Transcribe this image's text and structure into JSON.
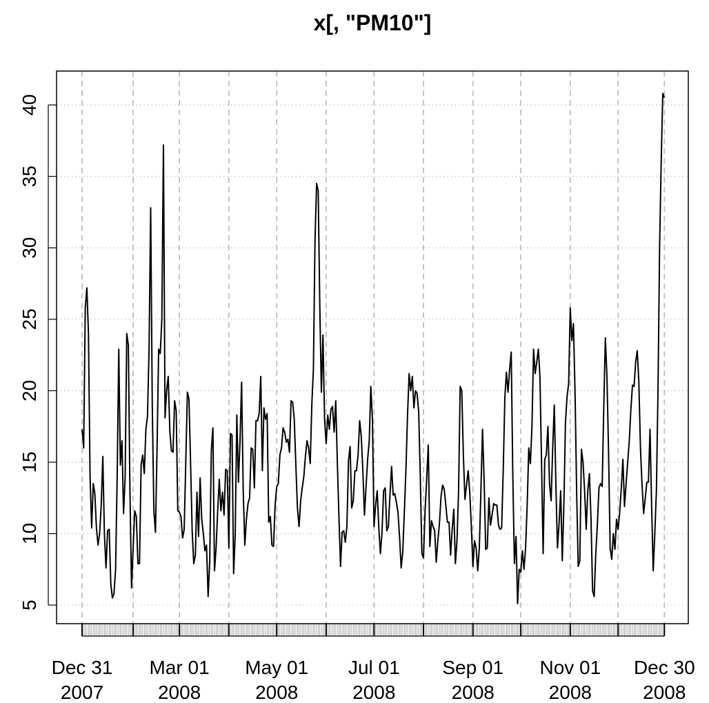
{
  "chart_data": {
    "type": "line",
    "title": "x[, \"PM10\"]",
    "color": "#000000",
    "grid": true,
    "xlim": [
      "2007-12-15",
      "2009-01-14"
    ],
    "ylim": [
      3.7,
      42.37
    ],
    "yticks": [
      5,
      10,
      15,
      20,
      25,
      30,
      35,
      40
    ],
    "xticks": [
      {
        "value": "2007-12-31",
        "label": "Dec 31\n2007"
      },
      {
        "value": "2008-02-01",
        "label": null
      },
      {
        "value": "2008-03-01",
        "label": "Mar 01\n2008"
      },
      {
        "value": "2008-04-01",
        "label": null
      },
      {
        "value": "2008-05-01",
        "label": "May 01\n2008"
      },
      {
        "value": "2008-06-01",
        "label": null
      },
      {
        "value": "2008-07-01",
        "label": "Jul 01\n2008"
      },
      {
        "value": "2008-08-01",
        "label": null
      },
      {
        "value": "2008-09-01",
        "label": "Sep 01\n2008"
      },
      {
        "value": "2008-10-01",
        "label": null
      },
      {
        "value": "2008-11-01",
        "label": "Nov 01\n2008"
      },
      {
        "value": "2008-12-01",
        "label": null
      },
      {
        "value": "2008-12-30",
        "label": "Dec 30\n2008"
      }
    ],
    "x": [
      "2007-12-31",
      "2008-01-01",
      "2008-01-02",
      "2008-01-03",
      "2008-01-04",
      "2008-01-05",
      "2008-01-06",
      "2008-01-07",
      "2008-01-08",
      "2008-01-09",
      "2008-01-10",
      "2008-01-11",
      "2008-01-12",
      "2008-01-13",
      "2008-01-14",
      "2008-01-15",
      "2008-01-16",
      "2008-01-17",
      "2008-01-18",
      "2008-01-19",
      "2008-01-20",
      "2008-01-21",
      "2008-01-22",
      "2008-01-23",
      "2008-01-24",
      "2008-01-25",
      "2008-01-26",
      "2008-01-27",
      "2008-01-28",
      "2008-01-29",
      "2008-01-30",
      "2008-01-31",
      "2008-02-01",
      "2008-02-02",
      "2008-02-03",
      "2008-02-04",
      "2008-02-05",
      "2008-02-06",
      "2008-02-07",
      "2008-02-08",
      "2008-02-09",
      "2008-02-10",
      "2008-02-11",
      "2008-02-12",
      "2008-02-13",
      "2008-02-14",
      "2008-02-15",
      "2008-02-16",
      "2008-02-17",
      "2008-02-18",
      "2008-02-19",
      "2008-02-20",
      "2008-02-21",
      "2008-02-22",
      "2008-02-23",
      "2008-02-24",
      "2008-02-25",
      "2008-02-26",
      "2008-02-27",
      "2008-02-28",
      "2008-02-29",
      "2008-03-01",
      "2008-03-02",
      "2008-03-03",
      "2008-03-04",
      "2008-03-05",
      "2008-03-06",
      "2008-03-07",
      "2008-03-08",
      "2008-03-09",
      "2008-03-10",
      "2008-03-11",
      "2008-03-12",
      "2008-03-13",
      "2008-03-14",
      "2008-03-15",
      "2008-03-16",
      "2008-03-17",
      "2008-03-18",
      "2008-03-19",
      "2008-03-20",
      "2008-03-21",
      "2008-03-22",
      "2008-03-23",
      "2008-03-24",
      "2008-03-25",
      "2008-03-26",
      "2008-03-27",
      "2008-03-28",
      "2008-03-29",
      "2008-03-30",
      "2008-03-31",
      "2008-04-01",
      "2008-04-02",
      "2008-04-03",
      "2008-04-04",
      "2008-04-05",
      "2008-04-06",
      "2008-04-07",
      "2008-04-08",
      "2008-04-09",
      "2008-04-10",
      "2008-04-11",
      "2008-04-12",
      "2008-04-13",
      "2008-04-14",
      "2008-04-15",
      "2008-04-16",
      "2008-04-17",
      "2008-04-18",
      "2008-04-19",
      "2008-04-20",
      "2008-04-21",
      "2008-04-22",
      "2008-04-23",
      "2008-04-24",
      "2008-04-25",
      "2008-04-26",
      "2008-04-27",
      "2008-04-28",
      "2008-04-29",
      "2008-04-30",
      "2008-05-01",
      "2008-05-02",
      "2008-05-03",
      "2008-05-04",
      "2008-05-05",
      "2008-05-06",
      "2008-05-07",
      "2008-05-08",
      "2008-05-09",
      "2008-05-10",
      "2008-05-11",
      "2008-05-12",
      "2008-05-13",
      "2008-05-14",
      "2008-05-15",
      "2008-05-16",
      "2008-05-17",
      "2008-05-18",
      "2008-05-19",
      "2008-05-20",
      "2008-05-21",
      "2008-05-22",
      "2008-05-23",
      "2008-05-24",
      "2008-05-25",
      "2008-05-26",
      "2008-05-27",
      "2008-05-28",
      "2008-05-29",
      "2008-05-30",
      "2008-05-31",
      "2008-06-01",
      "2008-06-02",
      "2008-06-03",
      "2008-06-04",
      "2008-06-05",
      "2008-06-06",
      "2008-06-07",
      "2008-06-08",
      "2008-06-09",
      "2008-06-10",
      "2008-06-11",
      "2008-06-12",
      "2008-06-13",
      "2008-06-14",
      "2008-06-15",
      "2008-06-16",
      "2008-06-17",
      "2008-06-18",
      "2008-06-19",
      "2008-06-20",
      "2008-06-21",
      "2008-06-22",
      "2008-06-23",
      "2008-06-24",
      "2008-06-25",
      "2008-06-26",
      "2008-06-27",
      "2008-06-28",
      "2008-06-29",
      "2008-06-30",
      "2008-07-01",
      "2008-07-02",
      "2008-07-03",
      "2008-07-04",
      "2008-07-05",
      "2008-07-06",
      "2008-07-07",
      "2008-07-08",
      "2008-07-09",
      "2008-07-10",
      "2008-07-11",
      "2008-07-12",
      "2008-07-13",
      "2008-07-14",
      "2008-07-15",
      "2008-07-16",
      "2008-07-17",
      "2008-07-18",
      "2008-07-19",
      "2008-07-20",
      "2008-07-21",
      "2008-07-22",
      "2008-07-23",
      "2008-07-24",
      "2008-07-25",
      "2008-07-26",
      "2008-07-27",
      "2008-07-28",
      "2008-07-29",
      "2008-07-30",
      "2008-07-31",
      "2008-08-01",
      "2008-08-02",
      "2008-08-03",
      "2008-08-04",
      "2008-08-05",
      "2008-08-06",
      "2008-08-07",
      "2008-08-08",
      "2008-08-09",
      "2008-08-10",
      "2008-08-11",
      "2008-08-12",
      "2008-08-13",
      "2008-08-14",
      "2008-08-15",
      "2008-08-16",
      "2008-08-17",
      "2008-08-18",
      "2008-08-19",
      "2008-08-20",
      "2008-08-21",
      "2008-08-22",
      "2008-08-23",
      "2008-08-24",
      "2008-08-25",
      "2008-08-26",
      "2008-08-27",
      "2008-08-28",
      "2008-08-29",
      "2008-08-30",
      "2008-08-31",
      "2008-09-01",
      "2008-09-02",
      "2008-09-03",
      "2008-09-04",
      "2008-09-05",
      "2008-09-06",
      "2008-09-07",
      "2008-09-08",
      "2008-09-09",
      "2008-09-10",
      "2008-09-11",
      "2008-09-12",
      "2008-09-13",
      "2008-09-14",
      "2008-09-15",
      "2008-09-16",
      "2008-09-17",
      "2008-09-18",
      "2008-09-19",
      "2008-09-20",
      "2008-09-21",
      "2008-09-22",
      "2008-09-23",
      "2008-09-24",
      "2008-09-25",
      "2008-09-26",
      "2008-09-27",
      "2008-09-28",
      "2008-09-29",
      "2008-09-30",
      "2008-10-01",
      "2008-10-02",
      "2008-10-03",
      "2008-10-04",
      "2008-10-05",
      "2008-10-06",
      "2008-10-07",
      "2008-10-08",
      "2008-10-09",
      "2008-10-10",
      "2008-10-11",
      "2008-10-12",
      "2008-10-13",
      "2008-10-14",
      "2008-10-15",
      "2008-10-16",
      "2008-10-17",
      "2008-10-18",
      "2008-10-19",
      "2008-10-20",
      "2008-10-21",
      "2008-10-22",
      "2008-10-23",
      "2008-10-24",
      "2008-10-25",
      "2008-10-26",
      "2008-10-27",
      "2008-10-28",
      "2008-10-29",
      "2008-10-30",
      "2008-10-31",
      "2008-11-01",
      "2008-11-02",
      "2008-11-03",
      "2008-11-04",
      "2008-11-05",
      "2008-11-06",
      "2008-11-07",
      "2008-11-08",
      "2008-11-09",
      "2008-11-10",
      "2008-11-11",
      "2008-11-12",
      "2008-11-13",
      "2008-11-14",
      "2008-11-15",
      "2008-11-16",
      "2008-11-17",
      "2008-11-18",
      "2008-11-19",
      "2008-11-20",
      "2008-11-21",
      "2008-11-22",
      "2008-11-23",
      "2008-11-24",
      "2008-11-25",
      "2008-11-26",
      "2008-11-27",
      "2008-11-28",
      "2008-11-29",
      "2008-11-30",
      "2008-12-01",
      "2008-12-02",
      "2008-12-03",
      "2008-12-04",
      "2008-12-05",
      "2008-12-06",
      "2008-12-07",
      "2008-12-08",
      "2008-12-09",
      "2008-12-10",
      "2008-12-11",
      "2008-12-12",
      "2008-12-13",
      "2008-12-14",
      "2008-12-15",
      "2008-12-16",
      "2008-12-17",
      "2008-12-18",
      "2008-12-19",
      "2008-12-20",
      "2008-12-21",
      "2008-12-22",
      "2008-12-23",
      "2008-12-24",
      "2008-12-25",
      "2008-12-26",
      "2008-12-27",
      "2008-12-28",
      "2008-12-29",
      "2008-12-30"
    ],
    "values": [
      17.3,
      16,
      25.8,
      27.2,
      24,
      14,
      10.4,
      13.5,
      12.8,
      10.4,
      9.2,
      10,
      12,
      15.4,
      10,
      7.6,
      10.2,
      10.3,
      6.5,
      5.5,
      5.8,
      7.5,
      14,
      22.9,
      14.8,
      16.5,
      11.4,
      14,
      24,
      23.2,
      13,
      6.2,
      9,
      11.6,
      11.2,
      7.9,
      7.9,
      14.8,
      15.5,
      14.2,
      17.3,
      18.2,
      23,
      32.8,
      19,
      11.6,
      10.1,
      16,
      22.9,
      22.6,
      25,
      37.2,
      18.1,
      20,
      21,
      17.2,
      15.8,
      15.7,
      19.3,
      18.6,
      11.6,
      11.5,
      11.2,
      9.7,
      10.3,
      15,
      19.9,
      19.4,
      15,
      10.2,
      7.9,
      8.5,
      12.9,
      9.8,
      13.9,
      11,
      10,
      8.8,
      9.2,
      5.6,
      8,
      15.8,
      17.4,
      7.4,
      9,
      11.6,
      13.8,
      11.6,
      12.9,
      11.3,
      14.5,
      14.4,
      9,
      17,
      16.9,
      7.2,
      10,
      18.3,
      13.6,
      16.5,
      20.6,
      13,
      9.2,
      11,
      12.1,
      12.5,
      16,
      15.9,
      13.2,
      17.9,
      17.9,
      18.4,
      21,
      14.4,
      18.8,
      18,
      18.4,
      10.8,
      11.2,
      9.2,
      9.1,
      12,
      13.3,
      13.5,
      15.5,
      16,
      17.4,
      17.1,
      16.4,
      16.6,
      15.7,
      19.3,
      19.2,
      18,
      14.8,
      11.8,
      10.5,
      12.3,
      13.2,
      14,
      15.4,
      16.5,
      16,
      14.9,
      19,
      21.5,
      30.5,
      34.5,
      34,
      26,
      19.9,
      23.9,
      18,
      16.3,
      18.3,
      17.3,
      18.7,
      18.9,
      17.1,
      19.3,
      15,
      11.2,
      7.7,
      10.1,
      10.2,
      9.4,
      10.5,
      15.1,
      16.1,
      11.8,
      12.3,
      14.4,
      14.4,
      15.5,
      17.9,
      16.8,
      14.4,
      11.3,
      13.3,
      15.2,
      16.5,
      20.3,
      18,
      10.5,
      12,
      13,
      10.4,
      8.6,
      10.1,
      13,
      13.2,
      10.2,
      10.5,
      12.7,
      14.7,
      12.7,
      12.8,
      12.2,
      11.5,
      9.8,
      7.6,
      8.7,
      11.5,
      14.5,
      18.3,
      21.2,
      20,
      21,
      18.8,
      20,
      19.8,
      18.5,
      14,
      8.6,
      8.3,
      11.6,
      13.8,
      16.2,
      9.1,
      10.9,
      10.5,
      10.2,
      8,
      9.5,
      10.7,
      12.6,
      13.4,
      13.1,
      12,
      10.8,
      10.8,
      8.5,
      10.3,
      11.7,
      7.9,
      9.5,
      13,
      20.3,
      20,
      15.5,
      12.4,
      13.4,
      14.4,
      12.9,
      10.5,
      7.7,
      9.5,
      9,
      7.4,
      9,
      13,
      17.3,
      13.8,
      8.9,
      9,
      12.5,
      10.6,
      11.3,
      12.1,
      12,
      12,
      10.6,
      10.3,
      10.4,
      14.5,
      19.5,
      21.3,
      19.9,
      21.5,
      22.7,
      14,
      7.9,
      9.8,
      5.1,
      7.5,
      7.3,
      8.8,
      7.5,
      9,
      12,
      16,
      14.9,
      17.5,
      22.9,
      21.2,
      22,
      22.9,
      21,
      15,
      8.6,
      15.2,
      15.5,
      17.5,
      13.5,
      12.3,
      16,
      19,
      13.4,
      9,
      10.7,
      13,
      8.1,
      12,
      17.8,
      19.6,
      20.5,
      25.8,
      23.5,
      24.7,
      19.9,
      13,
      7.7,
      8.1,
      15.9,
      15,
      13,
      10.3,
      13,
      14.2,
      11.1,
      6,
      5.6,
      8.6,
      10.6,
      13.2,
      13.5,
      13.3,
      18.8,
      23.7,
      21,
      15.8,
      9,
      8.2,
      10,
      8.9,
      11,
      10.3,
      11.5,
      13.2,
      15.2,
      11.9,
      13.5,
      15,
      16.5,
      18.7,
      20.4,
      20.3,
      22,
      22.8,
      20.6,
      16,
      13.4,
      11.4,
      12.5,
      13.6,
      13.6,
      17.3,
      12,
      7.4,
      10,
      13,
      20,
      30,
      36,
      40.8,
      40.5
    ]
  }
}
